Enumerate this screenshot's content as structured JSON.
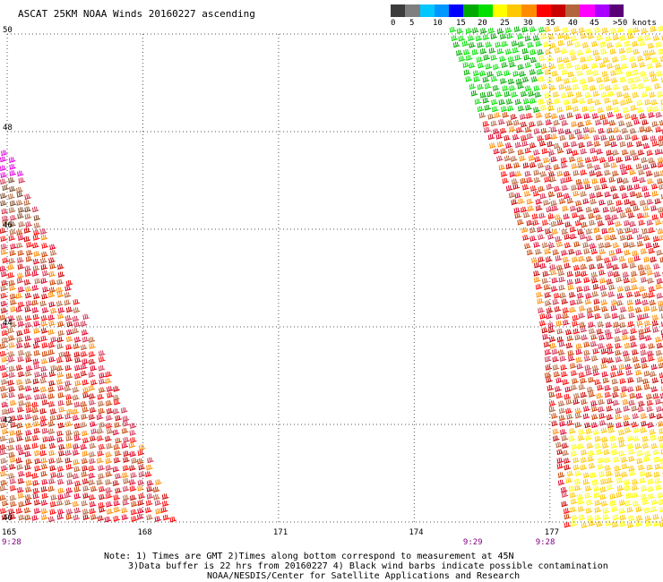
{
  "title": "ASCAT 25KM NOAA Winds 20160227 ascending",
  "colorbar": {
    "colors": [
      "#3c3c3c",
      "#7f7f7f",
      "#00c8ff",
      "#0096ff",
      "#0000ff",
      "#00aa00",
      "#00e000",
      "#ffff00",
      "#ffc800",
      "#ff8c00",
      "#ff0000",
      "#c80000",
      "#b4643c",
      "#ff00ff",
      "#aa00ff",
      "#5a0078"
    ],
    "labels": [
      "0",
      "5",
      "10",
      "15",
      "20",
      "25",
      "30",
      "35",
      "40",
      "45",
      ">50 knots"
    ]
  },
  "chart_data": {
    "type": "map",
    "projection": "lat-lon",
    "xlim": [
      165,
      179.5
    ],
    "ylim": [
      40,
      50
    ],
    "lat_ticks": [
      "50",
      "48",
      "46",
      "44",
      "42",
      "40"
    ],
    "lon_ticks": [
      "165",
      "168",
      "171",
      "174",
      "177"
    ],
    "swath_times": [
      {
        "label": "9:28",
        "lon": 165
      },
      {
        "label": "9:29",
        "lon": 175.2
      },
      {
        "label": "9:28",
        "lon": 176.8
      }
    ],
    "wind_swaths": [
      {
        "name": "western",
        "dominant_speeds_knots": "25-45",
        "lat_range": [
          40,
          47.8
        ]
      },
      {
        "name": "eastern",
        "dominant_speeds_knots": "15-45",
        "lat_range": [
          40,
          50
        ]
      }
    ]
  },
  "notes": [
    "Note: 1) Times are GMT 2)Times along bottom correspond to measurement at 45N",
    "3)Data buffer is 22 hrs from 20160227 4) Black wind barbs indicate possible contamination",
    "NOAA/NESDIS/Center for Satellite Applications and Research"
  ]
}
